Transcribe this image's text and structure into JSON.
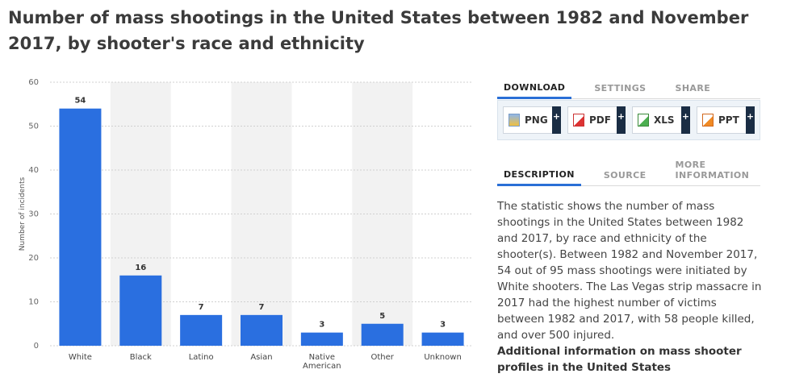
{
  "title": "Number of mass shootings in the United States between 1982 and November 2017, by shooter's race and ethnicity",
  "chart_data": {
    "type": "bar",
    "categories": [
      "White",
      "Black",
      "Latino",
      "Asian",
      "Native American",
      "Other",
      "Unknown"
    ],
    "values": [
      54,
      16,
      7,
      7,
      3,
      5,
      3
    ],
    "ylabel": "Number of incidents",
    "xlabel": "",
    "ylim": [
      0,
      60
    ],
    "yticks": [
      0,
      10,
      20,
      30,
      40,
      50,
      60
    ],
    "grid": true,
    "bar_color": "#2a6fe0"
  },
  "download": {
    "tabs": [
      "DOWNLOAD",
      "SETTINGS",
      "SHARE"
    ],
    "buttons": [
      {
        "label": "PNG",
        "icon": "png-file-icon"
      },
      {
        "label": "PDF",
        "icon": "pdf-file-icon"
      },
      {
        "label": "XLS",
        "icon": "xls-file-icon"
      },
      {
        "label": "PPT",
        "icon": "ppt-file-icon"
      }
    ],
    "plus": "+"
  },
  "description": {
    "tabs": [
      "DESCRIPTION",
      "SOURCE",
      "MORE INFORMATION"
    ],
    "text": "The statistic shows the number of mass shootings in the United States between 1982 and 2017, by race and ethnicity of the shooter(s). Between 1982 and November 2017, 54 out of 95 mass shootings were initiated by White shooters. The Las Vegas strip massacre in 2017 had the highest number of victims between 1982 and 2017, with 58 people killed, and over 500 injured.",
    "additional": "Additional information on mass shooter profiles in the United States"
  },
  "colors": {
    "accent": "#2a6fd6",
    "bar": "#2a6fe0",
    "band": "#f2f2f2"
  }
}
